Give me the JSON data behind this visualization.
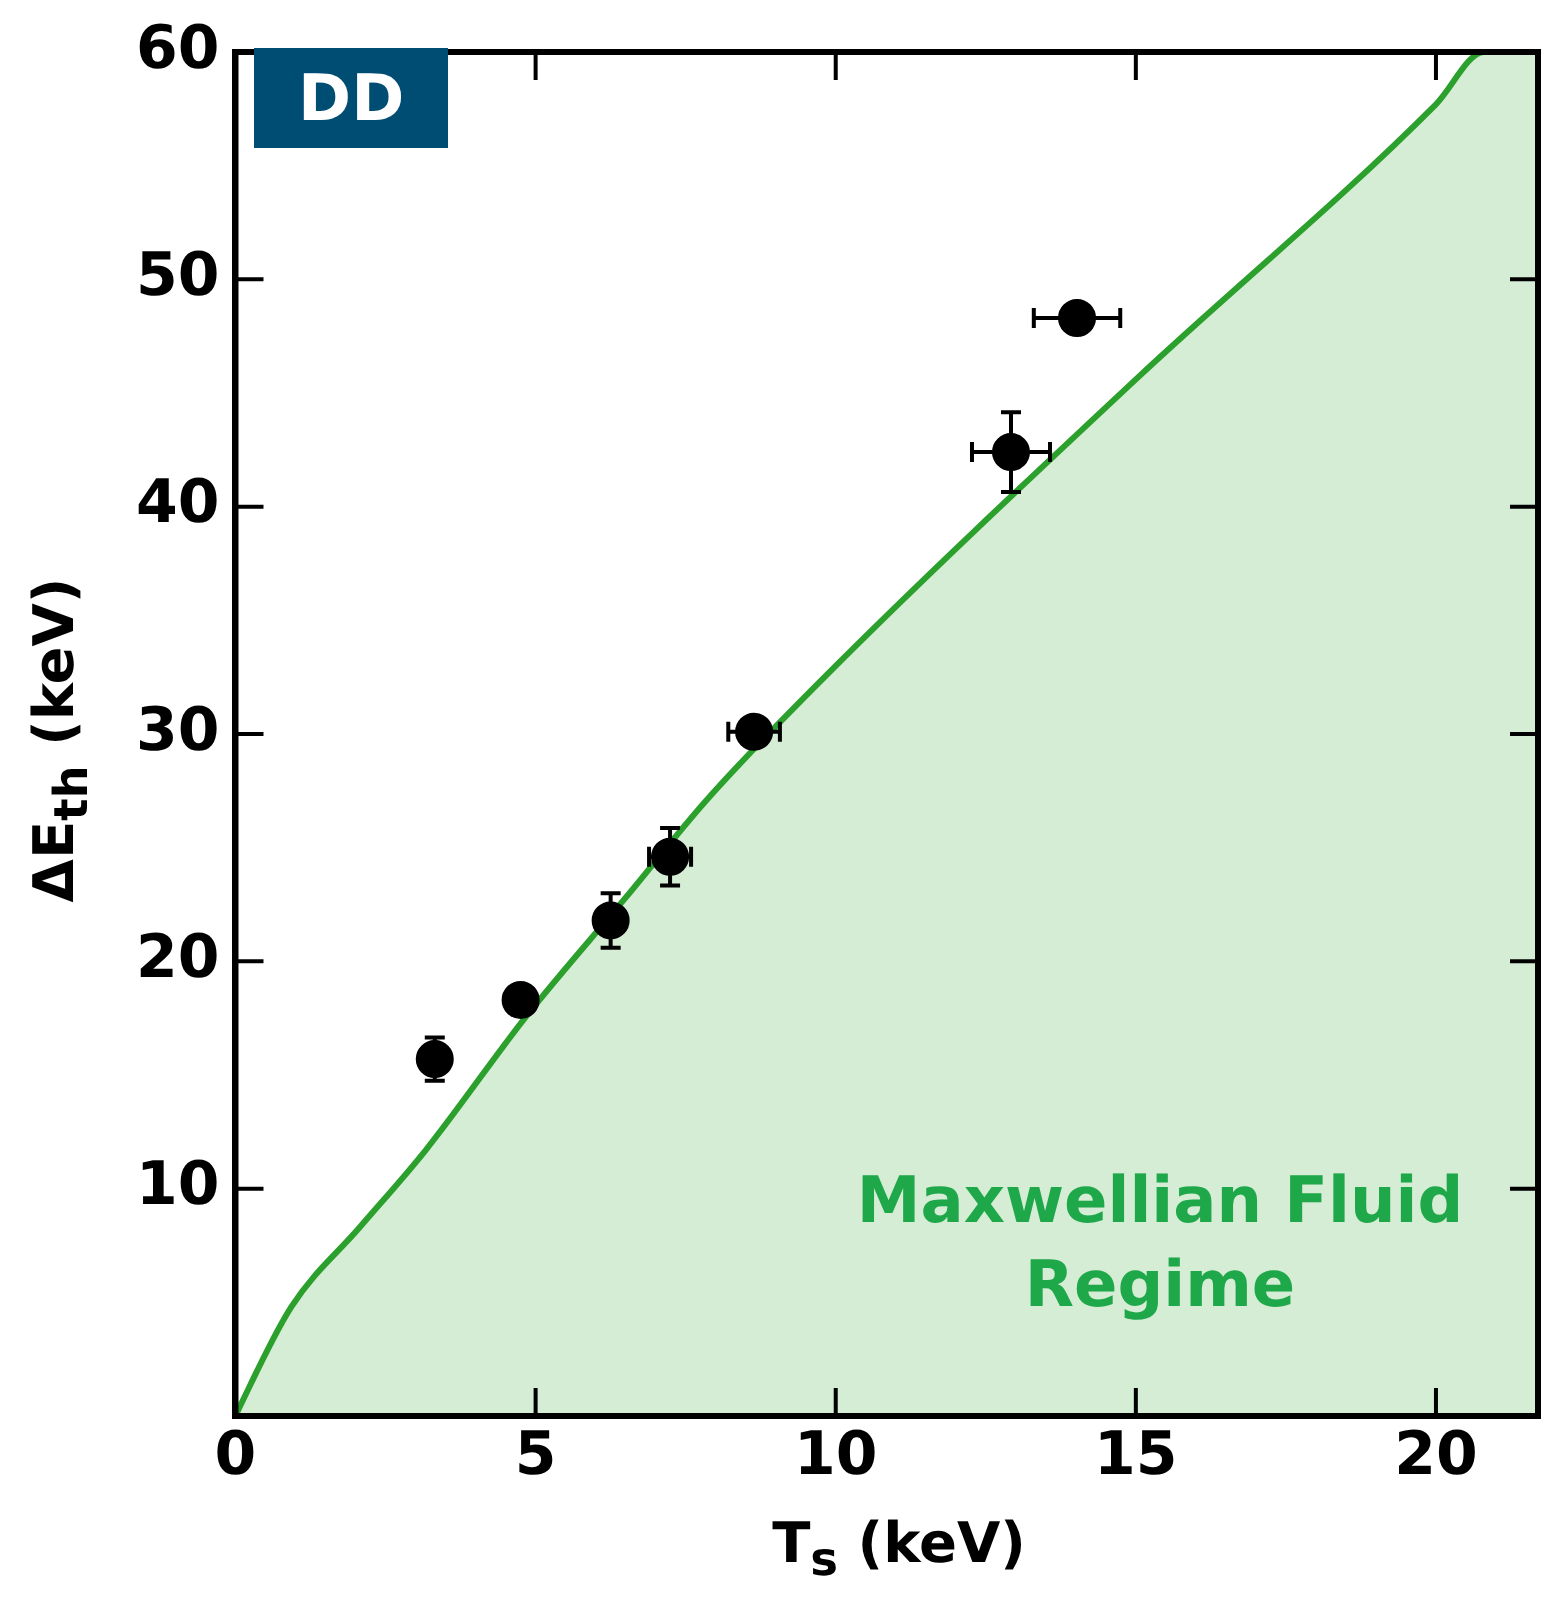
{
  "chart_data": {
    "type": "scatter",
    "xlabel": "T$_{s}$ (keV)",
    "ylabel": "ΔE$_{th}$ (keV)",
    "xlim": [
      0,
      21.7
    ],
    "ylim": [
      0,
      60
    ],
    "xticks": [
      0,
      5,
      10,
      15,
      20
    ],
    "yticks": [
      10,
      20,
      30,
      40,
      50,
      60
    ],
    "grid": false,
    "legend": false,
    "annotations": [
      "DD",
      "Maxwellian Fluid Regime"
    ],
    "series": [
      {
        "type": "area",
        "color": "#2ca02c",
        "x": [
          0,
          0.07,
          0.93,
          2.07,
          3.17,
          4.85,
          6.5,
          7.85,
          10,
          15,
          20,
          20.8,
          21.7
        ],
        "values": [
          0,
          0.4,
          4.8,
          8.3,
          11.7,
          17.6,
          22.8,
          27.1,
          33.0,
          45.6,
          57.7,
          60,
          60
        ]
      },
      {
        "color": "#000000",
        "marker": "circle",
        "x": [
          3.32,
          4.75,
          6.25,
          7.24,
          8.64,
          12.92,
          14.02
        ],
        "values": [
          15.7,
          18.3,
          21.8,
          24.6,
          30.1,
          42.4,
          48.3
        ],
        "errors": [
          0.95,
          null,
          1.2,
          1.26,
          null,
          1.75,
          null
        ],
        "xerrors": [
          null,
          null,
          null,
          0.35,
          0.43,
          0.65,
          0.72
        ]
      }
    ]
  }
}
